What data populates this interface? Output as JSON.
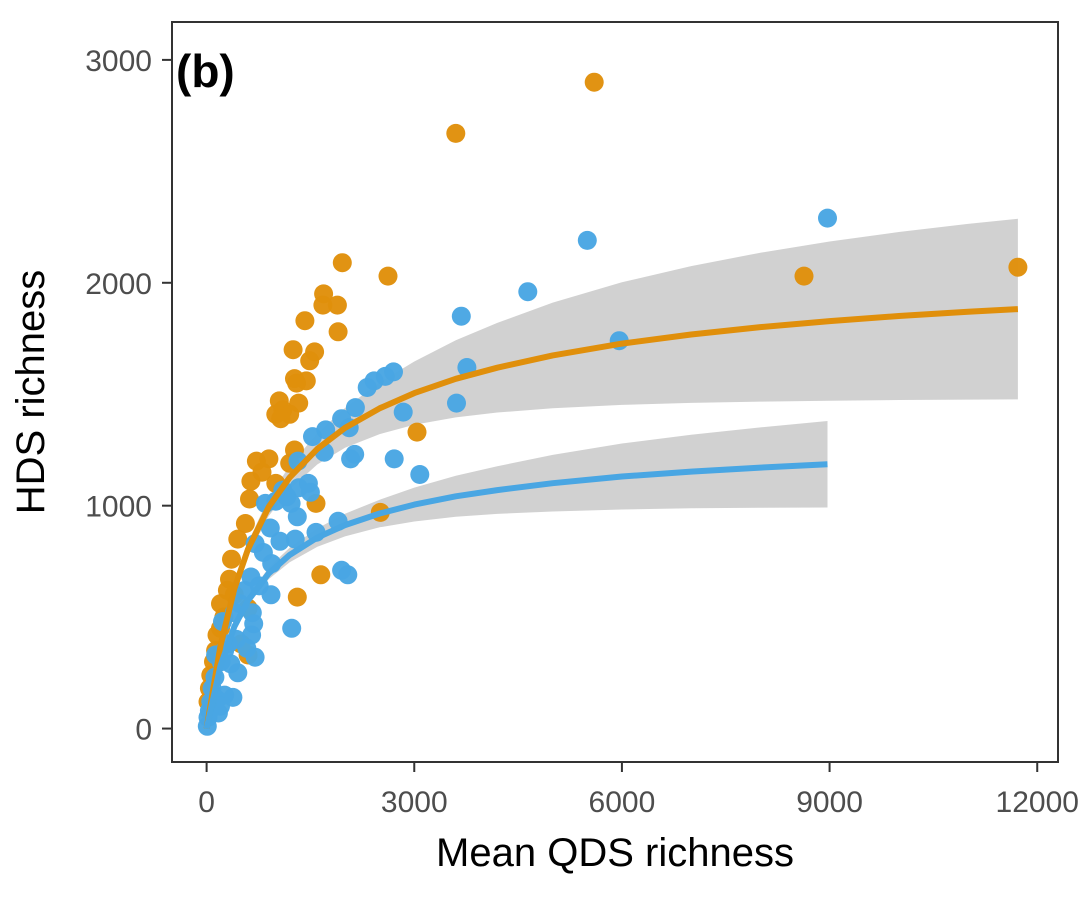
{
  "chart_data": {
    "type": "scatter",
    "panel_label": "(b)",
    "xlabel": "Mean QDS richness",
    "ylabel": "HDS richness",
    "xlim": [
      -500,
      12300
    ],
    "ylim": [
      -150,
      3170
    ],
    "x_ticks": [
      0,
      3000,
      6000,
      9000,
      12000
    ],
    "x_tick_labels": [
      "0",
      "3000",
      "6000",
      "9000",
      "12000"
    ],
    "y_ticks": [
      0,
      1000,
      2000,
      3000
    ],
    "y_tick_labels": [
      "0",
      "1000",
      "2000",
      "3000"
    ],
    "grid": false,
    "legend": "none",
    "colors": {
      "orange": "#E08F0B",
      "blue": "#49A6E3",
      "band": "#CCCCCC",
      "axis": "#333333"
    },
    "series": [
      {
        "color": "#E08F0B",
        "points": [
          [
            5600,
            2900
          ],
          [
            3600,
            2670
          ],
          [
            11720,
            2070
          ],
          [
            8630,
            2030
          ],
          [
            2620,
            2030
          ],
          [
            1960,
            2090
          ],
          [
            1690,
            1950
          ],
          [
            1680,
            1900
          ],
          [
            1890,
            1900
          ],
          [
            1420,
            1830
          ],
          [
            1900,
            1780
          ],
          [
            1250,
            1700
          ],
          [
            1560,
            1690
          ],
          [
            1490,
            1650
          ],
          [
            1270,
            1570
          ],
          [
            1300,
            1550
          ],
          [
            1440,
            1560
          ],
          [
            1050,
            1470
          ],
          [
            1330,
            1460
          ],
          [
            1100,
            1430
          ],
          [
            1000,
            1410
          ],
          [
            1200,
            1410
          ],
          [
            1070,
            1390
          ],
          [
            3040,
            1330
          ],
          [
            1270,
            1250
          ],
          [
            720,
            1200
          ],
          [
            900,
            1210
          ],
          [
            1200,
            1190
          ],
          [
            800,
            1150
          ],
          [
            640,
            1110
          ],
          [
            1000,
            1100
          ],
          [
            1580,
            1010
          ],
          [
            620,
            1030
          ],
          [
            2510,
            970
          ],
          [
            560,
            920
          ],
          [
            450,
            850
          ],
          [
            360,
            760
          ],
          [
            1650,
            690
          ],
          [
            330,
            670
          ],
          [
            300,
            620
          ],
          [
            400,
            600
          ],
          [
            1310,
            590
          ],
          [
            200,
            560
          ],
          [
            600,
            540
          ],
          [
            250,
            500
          ],
          [
            200,
            450
          ],
          [
            150,
            420
          ],
          [
            500,
            380
          ],
          [
            130,
            350
          ],
          [
            600,
            330
          ],
          [
            100,
            300
          ],
          [
            60,
            240
          ],
          [
            40,
            180
          ],
          [
            20,
            120
          ]
        ]
      },
      {
        "color": "#49A6E3",
        "points": [
          [
            8970,
            2290
          ],
          [
            5500,
            2190
          ],
          [
            4640,
            1960
          ],
          [
            3680,
            1850
          ],
          [
            5960,
            1740
          ],
          [
            3760,
            1620
          ],
          [
            2700,
            1600
          ],
          [
            2580,
            1580
          ],
          [
            2420,
            1560
          ],
          [
            2320,
            1530
          ],
          [
            3610,
            1460
          ],
          [
            2150,
            1440
          ],
          [
            2840,
            1420
          ],
          [
            1950,
            1390
          ],
          [
            2060,
            1350
          ],
          [
            1720,
            1340
          ],
          [
            1530,
            1310
          ],
          [
            1700,
            1240
          ],
          [
            2140,
            1230
          ],
          [
            2080,
            1210
          ],
          [
            2710,
            1210
          ],
          [
            1320,
            1200
          ],
          [
            3080,
            1140
          ],
          [
            1470,
            1100
          ],
          [
            1330,
            1080
          ],
          [
            1500,
            1060
          ],
          [
            1100,
            1070
          ],
          [
            1160,
            1040
          ],
          [
            1000,
            1020
          ],
          [
            1220,
            1010
          ],
          [
            850,
            1010
          ],
          [
            1310,
            950
          ],
          [
            1900,
            930
          ],
          [
            920,
            900
          ],
          [
            1580,
            880
          ],
          [
            1280,
            850
          ],
          [
            1060,
            840
          ],
          [
            700,
            830
          ],
          [
            820,
            790
          ],
          [
            940,
            740
          ],
          [
            1950,
            710
          ],
          [
            2040,
            690
          ],
          [
            640,
            680
          ],
          [
            760,
            640
          ],
          [
            550,
            620
          ],
          [
            930,
            600
          ],
          [
            480,
            560
          ],
          [
            660,
            520
          ],
          [
            400,
            520
          ],
          [
            230,
            480
          ],
          [
            680,
            470
          ],
          [
            1230,
            450
          ],
          [
            650,
            420
          ],
          [
            430,
            400
          ],
          [
            310,
            380
          ],
          [
            580,
            360
          ],
          [
            260,
            350
          ],
          [
            700,
            320
          ],
          [
            130,
            330
          ],
          [
            210,
            300
          ],
          [
            350,
            290
          ],
          [
            450,
            250
          ],
          [
            120,
            230
          ],
          [
            80,
            180
          ],
          [
            380,
            140
          ],
          [
            260,
            150
          ],
          [
            150,
            130
          ],
          [
            60,
            120
          ],
          [
            200,
            100
          ],
          [
            40,
            80
          ],
          [
            170,
            70
          ],
          [
            20,
            50
          ],
          [
            10,
            10
          ]
        ]
      }
    ],
    "fits": [
      {
        "color": "#E08F0B",
        "x": [
          0,
          200,
          400,
          600,
          900,
          1200,
          1600,
          2000,
          2500,
          3000,
          3600,
          4200,
          5000,
          6000,
          7000,
          8000,
          9000,
          10000,
          11000,
          11720
        ],
        "y": [
          0,
          372,
          627,
          806,
          996,
          1127,
          1255,
          1349,
          1437,
          1505,
          1569,
          1619,
          1674,
          1727,
          1768,
          1801,
          1828,
          1851,
          1870,
          1882
        ],
        "lower": [
          0,
          357,
          604,
          776,
          955,
          1074,
          1185,
          1260,
          1321,
          1363,
          1396,
          1418,
          1437,
          1452,
          1461,
          1467,
          1471,
          1474,
          1476,
          1477
        ],
        "upper": [
          0,
          387,
          650,
          836,
          1037,
          1180,
          1325,
          1438,
          1553,
          1647,
          1742,
          1820,
          1911,
          2002,
          2075,
          2135,
          2185,
          2228,
          2264,
          2287
        ]
      },
      {
        "color": "#49A6E3",
        "x": [
          0,
          200,
          400,
          600,
          900,
          1200,
          1600,
          2000,
          2500,
          3000,
          3600,
          4200,
          5000,
          6000,
          7000,
          8000,
          8970
        ],
        "y": [
          0,
          282,
          457,
          575,
          697,
          779,
          857,
          913,
          965,
          1005,
          1042,
          1070,
          1101,
          1131,
          1153,
          1171,
          1186
        ],
        "lower": [
          0,
          271,
          441,
          555,
          671,
          746,
          816,
          862,
          903,
          929,
          950,
          963,
          974,
          983,
          988,
          991,
          992
        ],
        "upper": [
          0,
          293,
          473,
          595,
          723,
          812,
          898,
          964,
          1027,
          1081,
          1134,
          1177,
          1228,
          1279,
          1318,
          1351,
          1380
        ]
      }
    ]
  }
}
